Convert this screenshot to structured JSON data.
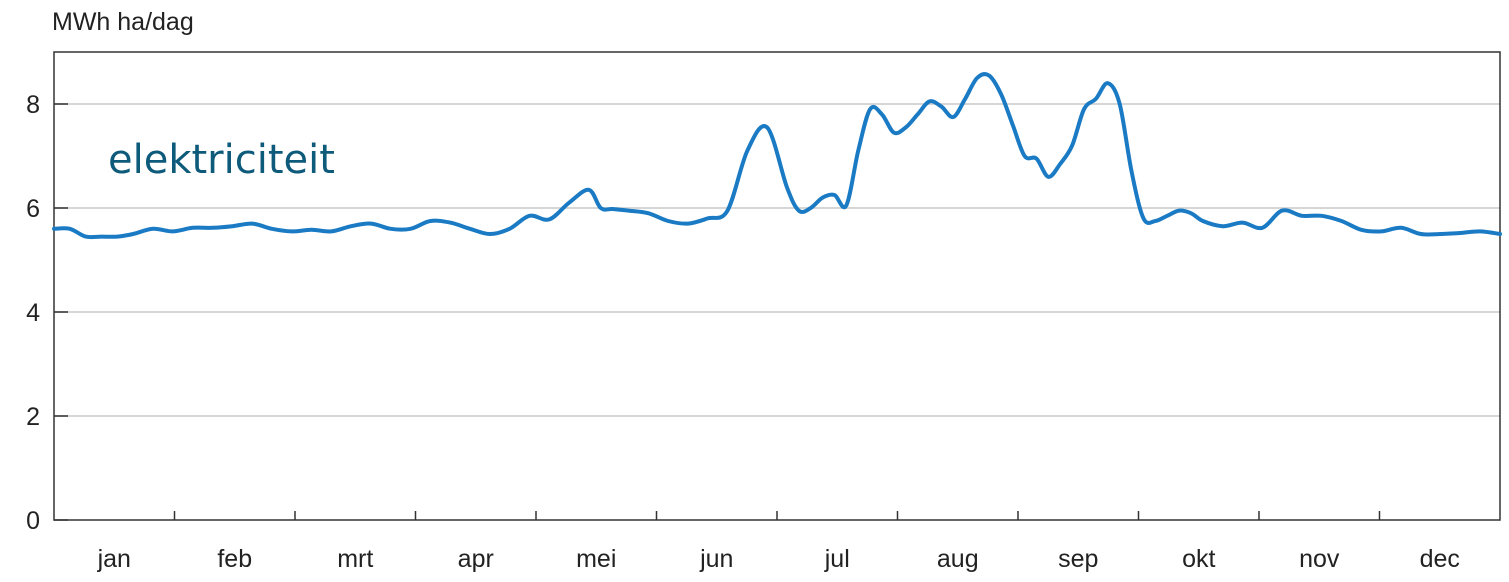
{
  "chart_data": {
    "type": "line",
    "title": "",
    "xlabel": "",
    "ylabel": "MWh ha/dag",
    "ylim": [
      0,
      9
    ],
    "yticks": [
      0,
      2,
      4,
      6,
      8
    ],
    "grid": true,
    "categories": [
      "jan",
      "feb",
      "mrt",
      "apr",
      "mei",
      "jun",
      "jul",
      "aug",
      "sep",
      "okt",
      "nov",
      "dec"
    ],
    "x_range": [
      0,
      365
    ],
    "annotation": "elektriciteit",
    "colors": {
      "line": "#1a7bc4",
      "annotation": "#0e5a7a",
      "grid": "#d6d6d6",
      "axis": "#333333",
      "text": "#222222"
    },
    "series": [
      {
        "name": "elektriciteit",
        "x": [
          0,
          4,
          8,
          12,
          16,
          20,
          25,
          30,
          35,
          40,
          45,
          50,
          55,
          60,
          65,
          70,
          75,
          80,
          85,
          90,
          95,
          100,
          105,
          110,
          115,
          120,
          125,
          130,
          135,
          138,
          141,
          145,
          150,
          155,
          160,
          165,
          170,
          175,
          180,
          185,
          188,
          191,
          194,
          197,
          200,
          203,
          206,
          209,
          212,
          215,
          218,
          221,
          224,
          227,
          230,
          233,
          236,
          239,
          242,
          245,
          248,
          251,
          254,
          257,
          260,
          263,
          266,
          269,
          272,
          275,
          278,
          281,
          284,
          287,
          290,
          295,
          300,
          305,
          310,
          315,
          320,
          325,
          330,
          335,
          340,
          345,
          350,
          355,
          360,
          365
        ],
        "values": [
          5.6,
          5.6,
          5.45,
          5.45,
          5.45,
          5.5,
          5.6,
          5.55,
          5.62,
          5.62,
          5.65,
          5.7,
          5.6,
          5.55,
          5.58,
          5.55,
          5.65,
          5.7,
          5.6,
          5.6,
          5.75,
          5.72,
          5.6,
          5.5,
          5.6,
          5.85,
          5.78,
          6.1,
          6.35,
          6.0,
          5.98,
          5.95,
          5.9,
          5.75,
          5.7,
          5.8,
          5.95,
          7.1,
          7.55,
          6.4,
          5.95,
          6.0,
          6.2,
          6.25,
          6.05,
          7.1,
          7.9,
          7.8,
          7.45,
          7.55,
          7.8,
          8.05,
          7.95,
          7.75,
          8.1,
          8.5,
          8.55,
          8.2,
          7.6,
          7.0,
          6.95,
          6.6,
          6.85,
          7.2,
          7.9,
          8.1,
          8.4,
          8.0,
          6.7,
          5.8,
          5.75,
          5.85,
          5.95,
          5.9,
          5.75,
          5.65,
          5.72,
          5.62,
          5.95,
          5.85,
          5.85,
          5.75,
          5.58,
          5.55,
          5.62,
          5.5,
          5.5,
          5.52,
          5.55,
          5.5
        ]
      }
    ]
  }
}
